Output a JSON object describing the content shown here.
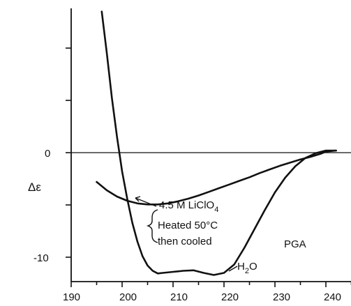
{
  "chart_data": {
    "type": "line",
    "title": "",
    "xlabel": "",
    "ylabel": "Δε",
    "xlim": [
      190,
      250
    ],
    "ylim": [
      -13.5,
      15
    ],
    "x_ticks": [
      "190",
      "200",
      "210",
      "220",
      "230",
      "240"
    ],
    "y_ticks": [
      "0",
      "-10"
    ],
    "grid": false,
    "series": [
      {
        "name": "H₂O",
        "x": [
          196,
          197,
          198,
          199,
          200,
          201,
          202,
          203,
          204,
          205,
          206,
          207,
          208,
          210,
          212,
          214,
          216,
          218,
          220,
          222,
          224,
          226,
          228,
          230,
          232,
          234,
          236,
          238,
          240,
          242
        ],
        "y": [
          13.5,
          9.5,
          5.2,
          1.5,
          -1.8,
          -4.4,
          -6.7,
          -8.5,
          -9.9,
          -10.8,
          -11.3,
          -11.55,
          -11.5,
          -11.4,
          -11.3,
          -11.25,
          -11.5,
          -11.7,
          -11.5,
          -10.7,
          -9.1,
          -7.3,
          -5.5,
          -3.8,
          -2.4,
          -1.3,
          -0.5,
          -0.05,
          0.2,
          0.2
        ]
      },
      {
        "name": "4.5 M LiClO₄",
        "x": [
          195,
          197,
          199,
          201,
          203,
          205,
          207,
          209,
          211,
          213,
          215,
          217,
          219,
          221,
          223,
          225,
          227,
          229,
          231,
          233,
          235,
          237,
          239,
          240,
          242
        ],
        "y": [
          -2.8,
          -3.6,
          -4.2,
          -4.6,
          -4.85,
          -4.95,
          -4.95,
          -4.85,
          -4.65,
          -4.4,
          -4.1,
          -3.75,
          -3.4,
          -3.05,
          -2.7,
          -2.35,
          -1.95,
          -1.6,
          -1.25,
          -0.95,
          -0.65,
          -0.4,
          -0.1,
          0.1,
          0.2
        ]
      }
    ],
    "annotations": {
      "licl_label_main": "4.5 M LiClO",
      "licl_label_sub": "4",
      "heated_line1": "Heated 50°C",
      "heated_line2": "then cooled",
      "h2o_label_main": "H",
      "h2o_label_sub": "2",
      "h2o_label_end": "O",
      "sample_label": "PGA"
    }
  }
}
